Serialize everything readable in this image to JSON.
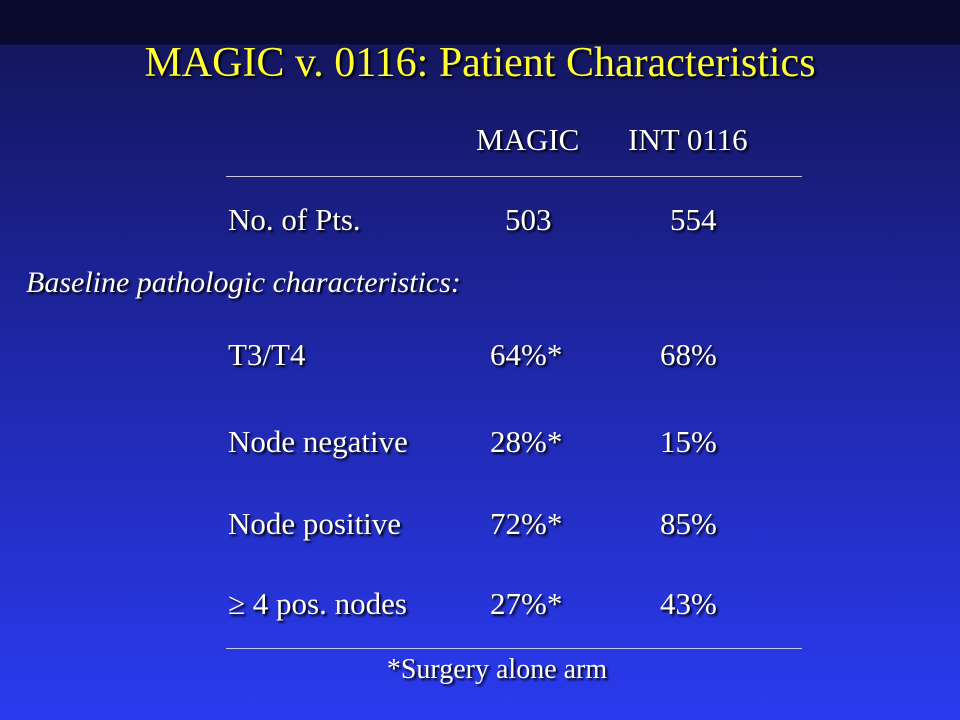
{
  "title": "MAGIC v. 0116: Patient Characteristics",
  "table": {
    "columns": [
      "MAGIC",
      "INT 0116"
    ],
    "count_row": [
      "No. of Pts.",
      "503",
      "554"
    ],
    "section": "Baseline pathologic characteristics:",
    "rows": [
      [
        "T3/T4",
        "64%*",
        "68%"
      ],
      [
        "Node negative",
        "28%*",
        "15%"
      ],
      [
        "Node positive",
        "72%*",
        "85%"
      ],
      [
        "≥ 4 pos. nodes",
        "27%*",
        "43%"
      ]
    ],
    "footnote": "*Surgery alone arm"
  }
}
